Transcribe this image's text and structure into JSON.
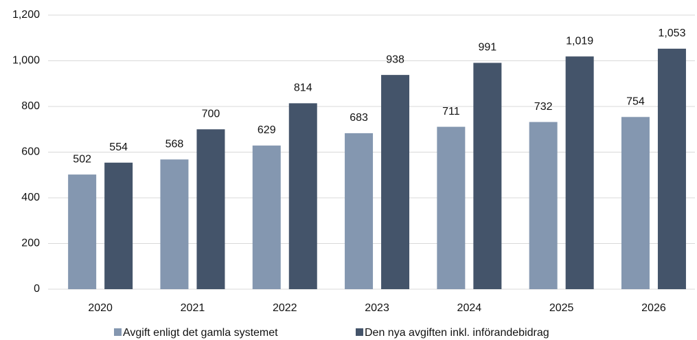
{
  "chart_data": {
    "type": "bar",
    "categories": [
      "2020",
      "2021",
      "2022",
      "2023",
      "2024",
      "2025",
      "2026"
    ],
    "series": [
      {
        "name": "Avgift enligt det gamla systemet",
        "color": "#8497b0",
        "values": [
          502,
          568,
          629,
          683,
          711,
          732,
          754
        ]
      },
      {
        "name": "Den nya avgiften inkl. införandebidrag",
        "color": "#44546a",
        "values": [
          554,
          700,
          814,
          938,
          991,
          1019,
          1053
        ],
        "value_labels": [
          "554",
          "700",
          "814",
          "938",
          "991",
          "1,019",
          "1,053"
        ]
      }
    ],
    "ylim": [
      0,
      1200
    ],
    "yticks": [
      0,
      200,
      400,
      600,
      800,
      {
        "value": 1000,
        "label": "1,000"
      },
      {
        "value": 1200,
        "label": "1,200"
      }
    ],
    "grid": true,
    "legend": "bottom"
  }
}
